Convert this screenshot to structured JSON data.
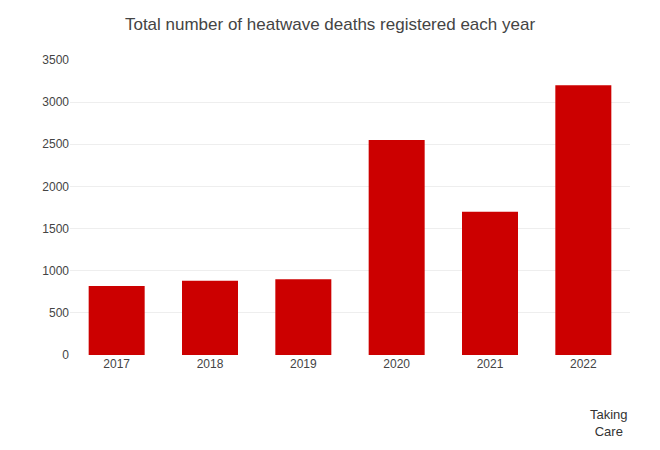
{
  "chart_data": {
    "type": "bar",
    "title": "Total number of heatwave deaths registered each year",
    "categories": [
      "2017",
      "2018",
      "2019",
      "2020",
      "2021",
      "2022"
    ],
    "values": [
      820,
      880,
      900,
      2550,
      1700,
      3200
    ],
    "color": "#cc0000",
    "ylim": [
      0,
      3500
    ],
    "yticks": [
      0,
      500,
      1000,
      1500,
      2000,
      2500,
      3000,
      3500
    ],
    "grid": true,
    "annotations": [
      "Taking\nCare"
    ]
  }
}
